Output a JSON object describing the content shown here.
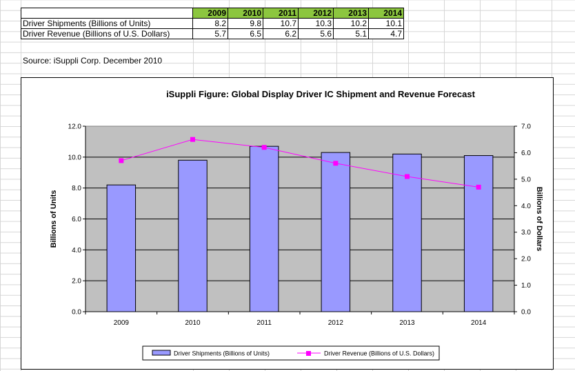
{
  "table": {
    "years": [
      "2009",
      "2010",
      "2011",
      "2012",
      "2013",
      "2014"
    ],
    "rows": [
      {
        "label": "Driver Shipments (Billions of Units)",
        "values": [
          "8.2",
          "9.8",
          "10.7",
          "10.3",
          "10.2",
          "10.1"
        ]
      },
      {
        "label": "Driver Revenue (Billions of U.S. Dollars)",
        "values": [
          "5.7",
          "6.5",
          "6.2",
          "5.6",
          "5.1",
          "4.7"
        ]
      }
    ]
  },
  "source_note": "Source: iSuppli Corp. December 2010",
  "chart_data": {
    "type": "bar",
    "title": "iSuppli Figure: Global Display Driver IC Shipment and Revenue Forecast",
    "categories": [
      "2009",
      "2010",
      "2011",
      "2012",
      "2013",
      "2014"
    ],
    "series": [
      {
        "name": "Driver Shipments (Billions of Units)",
        "type": "bar",
        "axis": "left",
        "values": [
          8.2,
          9.8,
          10.7,
          10.3,
          10.2,
          10.1
        ],
        "color": "#9999ff"
      },
      {
        "name": "Driver Revenue (Billions of U.S. Dollars)",
        "type": "line",
        "axis": "right",
        "values": [
          5.7,
          6.5,
          6.2,
          5.6,
          5.1,
          4.7
        ],
        "color": "#ff00ff"
      }
    ],
    "ylabel": "Billions of Units",
    "y2label": "Billions of Dollars",
    "ylim": [
      0,
      12
    ],
    "y2lim": [
      0,
      7
    ],
    "yticks": [
      "0.0",
      "2.0",
      "4.0",
      "6.0",
      "8.0",
      "10.0",
      "12.0"
    ],
    "y2ticks": [
      "0.0",
      "1.0",
      "2.0",
      "3.0",
      "4.0",
      "5.0",
      "6.0",
      "7.0"
    ],
    "plot_background": "#c0c0c0",
    "grid": true,
    "legend_position": "bottom"
  }
}
